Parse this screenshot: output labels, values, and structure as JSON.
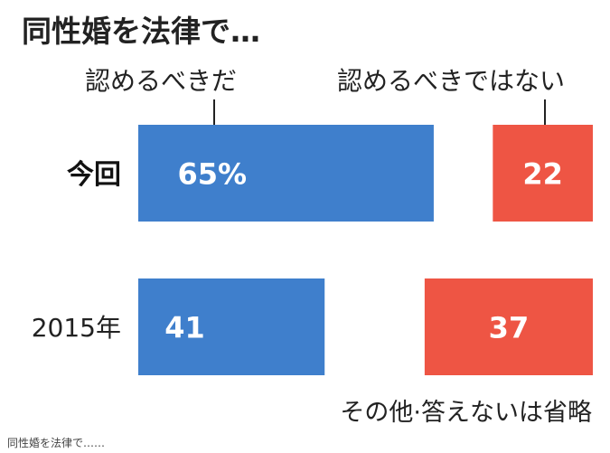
{
  "chart_data": {
    "type": "bar",
    "title": "同性婚を法律で…",
    "categories": [
      "今回",
      "2015年"
    ],
    "series": [
      {
        "name": "認めるべきだ",
        "values": [
          65,
          41
        ],
        "labels": [
          "65%",
          "41"
        ],
        "color": "#3f7fcc"
      },
      {
        "name": "認めるべきではない",
        "values": [
          22,
          37
        ],
        "labels": [
          "22",
          "37"
        ],
        "color": "#ee5544"
      }
    ],
    "bar_style": "stacked-gap",
    "omitted_note": "その他·答えないは省略",
    "xlim": [
      0,
      100
    ]
  },
  "caption": "同性婚を法律で……"
}
